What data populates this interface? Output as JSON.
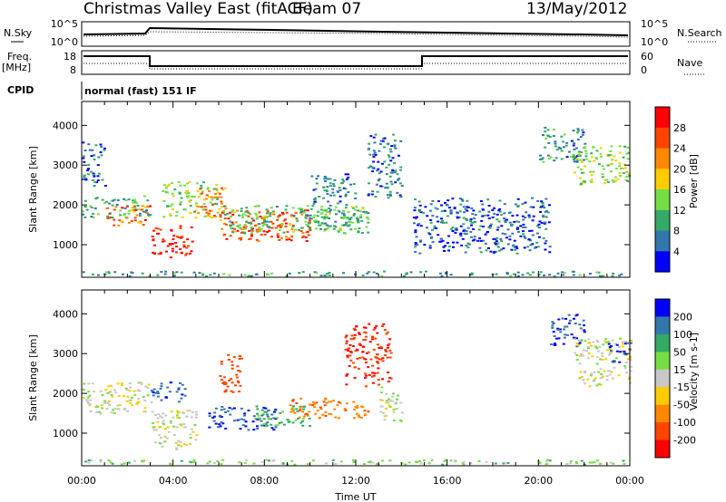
{
  "header": {
    "title": "Christmas Valley East (fitACF)",
    "beam": "Beam 07",
    "date": "13/May/2012"
  },
  "aux_panels": {
    "nsky_label": "N.Sky",
    "nsearch_label": "N.Search",
    "noise_ticks": [
      "10^5",
      "10^0"
    ],
    "freq_label_line1": "Freq.",
    "freq_label_line2": "[MHz]",
    "freq_ticks": [
      "18",
      "8"
    ],
    "nave_label": "Nave",
    "nave_ticks": [
      "60",
      "0"
    ],
    "cpid_label": "CPID",
    "cpid_value": "normal (fast) 151 IF"
  },
  "chart_data": [
    {
      "type": "heatmap",
      "panel": "power",
      "ylabel": "Slant Range [km]",
      "y_ticks": [
        1000,
        2000,
        3000,
        4000
      ],
      "ylim": [
        180,
        4600
      ],
      "x_ticks": [
        "00:00",
        "04:00",
        "08:00",
        "12:00",
        "16:00",
        "20:00",
        "00:00"
      ],
      "xlim_hours": [
        0,
        24
      ],
      "colorbar": {
        "label": "Power [dB]",
        "ticks": [
          "28",
          "24",
          "20",
          "16",
          "12",
          "8",
          "4"
        ],
        "colors": [
          "#ff0000",
          "#ff4400",
          "#ff8800",
          "#ffcc00",
          "#77dd44",
          "#33aa66",
          "#3377aa",
          "#0000ff"
        ]
      },
      "regions": [
        {
          "t0": 0.0,
          "t1": 3.0,
          "r0": 1700,
          "r1": 2250,
          "level": 10
        },
        {
          "t0": 0.0,
          "t1": 1.0,
          "r0": 2500,
          "r1": 3600,
          "level": 6
        },
        {
          "t0": 1.0,
          "t1": 3.0,
          "r0": 1500,
          "r1": 2000,
          "level": 24
        },
        {
          "t0": 3.0,
          "t1": 4.8,
          "r0": 700,
          "r1": 1500,
          "level": 30
        },
        {
          "t0": 3.5,
          "t1": 6.0,
          "r0": 1700,
          "r1": 2600,
          "level": 14
        },
        {
          "t0": 5.0,
          "t1": 6.3,
          "r0": 1700,
          "r1": 2500,
          "level": 22
        },
        {
          "t0": 6.0,
          "t1": 10.0,
          "r0": 1100,
          "r1": 1900,
          "level": 26
        },
        {
          "t0": 6.0,
          "t1": 12.6,
          "r0": 1300,
          "r1": 2000,
          "level": 12
        },
        {
          "t0": 9.5,
          "t1": 12.5,
          "r0": 1400,
          "r1": 1900,
          "level": 10
        },
        {
          "t0": 10.0,
          "t1": 12.0,
          "r0": 2000,
          "r1": 2800,
          "level": 7
        },
        {
          "t0": 12.5,
          "t1": 14.0,
          "r0": 2200,
          "r1": 3800,
          "level": 6
        },
        {
          "t0": 14.5,
          "t1": 20.5,
          "r0": 800,
          "r1": 2200,
          "level": 5
        },
        {
          "t0": 20.0,
          "t1": 22.0,
          "r0": 3100,
          "r1": 4000,
          "level": 8
        },
        {
          "t0": 21.5,
          "t1": 24.0,
          "r0": 2500,
          "r1": 3500,
          "level": 14
        },
        {
          "t0": 0.0,
          "t1": 24.0,
          "r0": 230,
          "r1": 350,
          "level": 9
        }
      ]
    },
    {
      "type": "heatmap",
      "panel": "velocity",
      "ylabel": "Slant Range [km]",
      "y_ticks": [
        1000,
        2000,
        3000,
        4000
      ],
      "ylim": [
        180,
        4600
      ],
      "x_ticks": [
        "00:00",
        "04:00",
        "08:00",
        "12:00",
        "16:00",
        "20:00",
        "00:00"
      ],
      "xlim_hours": [
        0,
        24
      ],
      "xlabel": "Time UT",
      "colorbar": {
        "label": "Velocity [m s-1]",
        "ticks": [
          "200",
          "100",
          "50",
          "15",
          "-15",
          "-50",
          "-100",
          "-200"
        ],
        "colors": [
          "#0000ff",
          "#3377aa",
          "#33aa66",
          "#77dd44",
          "#c8c8c8",
          "#ffcc00",
          "#ff8800",
          "#ff4400",
          "#ff0000"
        ]
      },
      "regions": [
        {
          "t0": 0.0,
          "t1": 3.0,
          "r0": 1500,
          "r1": 2300,
          "level": 0
        },
        {
          "t0": 3.0,
          "t1": 5.0,
          "r0": 600,
          "r1": 1600,
          "level": 0
        },
        {
          "t0": 3.0,
          "t1": 4.5,
          "r0": 1800,
          "r1": 2300,
          "level": 180
        },
        {
          "t0": 5.5,
          "t1": 8.5,
          "r0": 1100,
          "r1": 1700,
          "level": 200
        },
        {
          "t0": 7.5,
          "t1": 10.0,
          "r0": 1200,
          "r1": 1700,
          "level": 60
        },
        {
          "t0": 6.0,
          "t1": 7.0,
          "r0": 2000,
          "r1": 3000,
          "level": -150
        },
        {
          "t0": 9.0,
          "t1": 12.5,
          "r0": 1400,
          "r1": 1900,
          "level": -90
        },
        {
          "t0": 11.5,
          "t1": 13.5,
          "r0": 2200,
          "r1": 3800,
          "level": -200
        },
        {
          "t0": 13.0,
          "t1": 14.0,
          "r0": 1300,
          "r1": 2200,
          "level": 0
        },
        {
          "t0": 20.5,
          "t1": 22.0,
          "r0": 3200,
          "r1": 4000,
          "level": 200
        },
        {
          "t0": 21.5,
          "t1": 24.0,
          "r0": 2200,
          "r1": 3400,
          "level": 0
        },
        {
          "t0": 23.0,
          "t1": 24.0,
          "r0": 2800,
          "r1": 3300,
          "level": 200
        },
        {
          "t0": 0.0,
          "t1": 24.0,
          "r0": 230,
          "r1": 350,
          "level": 30
        }
      ]
    }
  ]
}
